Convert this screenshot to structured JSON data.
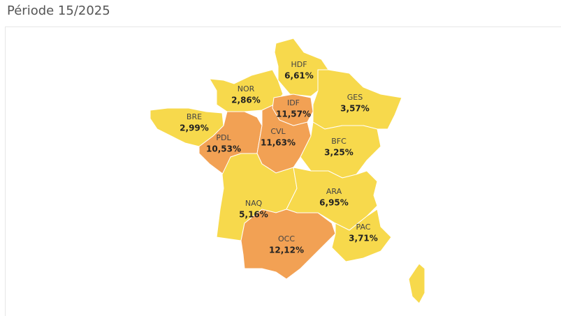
{
  "header": {
    "title": "Période 15/2025"
  },
  "regions": [
    {
      "code": "HDF",
      "label": "6,61%",
      "color": "#f7d94c"
    },
    {
      "code": "NOR",
      "label": "2,86%",
      "color": "#f7d94c"
    },
    {
      "code": "IDF",
      "label": "11,57%",
      "color": "#f2a154"
    },
    {
      "code": "GES",
      "label": "3,57%",
      "color": "#f7d94c"
    },
    {
      "code": "BRE",
      "label": "2,99%",
      "color": "#f7d94c"
    },
    {
      "code": "PDL",
      "label": "10,53%",
      "color": "#f2a154"
    },
    {
      "code": "CVL",
      "label": "11,63%",
      "color": "#f2a154"
    },
    {
      "code": "BFC",
      "label": "3,25%",
      "color": "#f7d94c"
    },
    {
      "code": "NAQ",
      "label": "5,16%",
      "color": "#f7d94c"
    },
    {
      "code": "ARA",
      "label": "6,95%",
      "color": "#f7d94c"
    },
    {
      "code": "OCC",
      "label": "12,12%",
      "color": "#f2a154"
    },
    {
      "code": "PAC",
      "label": "3,71%",
      "color": "#f7d94c"
    }
  ]
}
